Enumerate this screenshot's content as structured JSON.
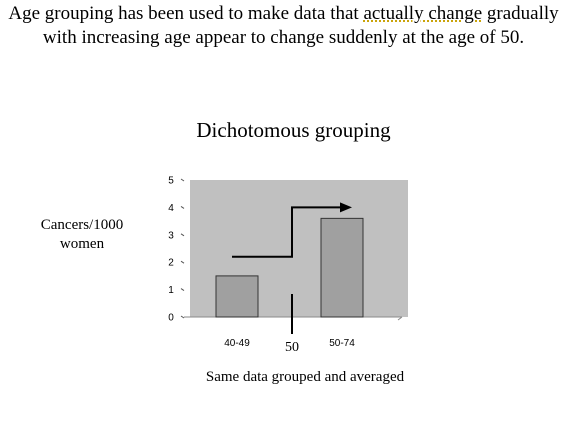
{
  "slide": {
    "caption_before": "Age grouping has been used to make data that ",
    "caption_squiggle": "actually change",
    "caption_after": " gradually with increasing age appear to change suddenly at the age of 50."
  },
  "chart_data": {
    "type": "bar",
    "title": "Dichotomous grouping",
    "ylabel": "Cancers/1000 women",
    "xlabel": "Same data grouped and averaged",
    "categories": [
      "40-49",
      "50-74"
    ],
    "values": [
      1.5,
      3.6
    ],
    "ylim": [
      0,
      5
    ],
    "yticks": [
      "0",
      "1",
      "2",
      "3",
      "4",
      "5"
    ],
    "annotations": [
      {
        "type": "cutoff-line",
        "label": "50"
      },
      {
        "type": "step-arrow",
        "from": 2.2,
        "to": 4.0
      }
    ],
    "colors": {
      "plot_background": "#c0c0c0",
      "bar_fill": "#a0a0a0",
      "bar_stroke": "#333333"
    },
    "grid": false,
    "legend": "none"
  }
}
